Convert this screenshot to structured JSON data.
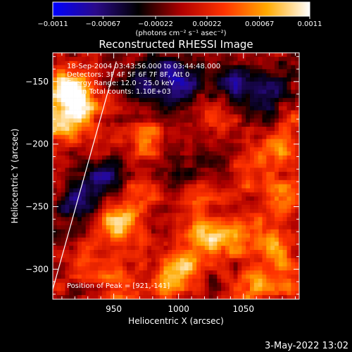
{
  "chart_data": {
    "type": "heatmap",
    "title": "Reconstructed RHESSI Image",
    "xlabel": "Heliocentric X (arcsec)",
    "ylabel": "Heliocentric Y (arcsec)",
    "xlim": [
      903,
      1093
    ],
    "ylim": [
      -324,
      -127
    ],
    "x_ticks": [
      950,
      1000,
      1050
    ],
    "x_tick_labels": [
      "950",
      "1000",
      "1050"
    ],
    "y_ticks": [
      -150,
      -200,
      -250,
      -300
    ],
    "y_tick_labels": [
      "−150",
      "−200",
      "−250",
      "−300"
    ],
    "colorbar": {
      "range": [
        -0.0011,
        0.0011
      ],
      "ticks": [
        -0.0011,
        -0.00067,
        -0.00022,
        0.00022,
        0.00067,
        0.0011
      ],
      "tick_labels": [
        "−0.0011",
        "−0.00067",
        "−0.00022",
        "0.00022",
        "0.00067",
        "0.0011"
      ],
      "unit_label": "(photons cm⁻² s⁻¹ asec⁻²)",
      "colormap": [
        "#0000ff",
        "#2a0a8a",
        "#000000",
        "#b00000",
        "#ff3300",
        "#ffaa00",
        "#ffffff"
      ]
    },
    "annotations": [
      "18-Sep-2004 03:43:56.000 to 03:44:48.000",
      "Detectors: 3F 4F 5F 6F 7F 8F, Att 0",
      "Energy Range: 12.0 - 25.0 keV",
      "Clean    Total counts: 1.10E+03",
      "Position of Peak = [921,-141]"
    ],
    "peak": {
      "x": 921,
      "y": -141
    },
    "limb_line": {
      "x": [
        903,
        952
      ],
      "y": [
        -316,
        -134
      ]
    },
    "hotspots": [
      {
        "x": 915,
        "y": -155,
        "value": 0.0011
      },
      {
        "x": 925,
        "y": -170,
        "value": 0.0009
      },
      {
        "x": 910,
        "y": -185,
        "value": 0.0008
      },
      {
        "x": 1020,
        "y": -275,
        "value": 0.0009
      },
      {
        "x": 1045,
        "y": -275,
        "value": 0.0007
      },
      {
        "x": 1003,
        "y": -300,
        "value": 0.0007
      },
      {
        "x": 955,
        "y": -265,
        "value": 0.0007
      },
      {
        "x": 945,
        "y": -255,
        "value": 0.0006
      },
      {
        "x": 1075,
        "y": -280,
        "value": 0.0007
      },
      {
        "x": 1080,
        "y": -245,
        "value": 0.0006
      },
      {
        "x": 1072,
        "y": -205,
        "value": 0.0006
      },
      {
        "x": 1030,
        "y": -180,
        "value": 0.0005
      },
      {
        "x": 975,
        "y": -195,
        "value": 0.0005
      },
      {
        "x": 970,
        "y": -235,
        "value": 0.0004
      },
      {
        "x": 1050,
        "y": -225,
        "value": 0.0004
      },
      {
        "x": 990,
        "y": -310,
        "value": 0.0005
      },
      {
        "x": 1060,
        "y": -315,
        "value": 0.0006
      },
      {
        "x": 1085,
        "y": -310,
        "value": 0.0005
      },
      {
        "x": 935,
        "y": -295,
        "value": 0.0004
      },
      {
        "x": 960,
        "y": -315,
        "value": 0.0005
      },
      {
        "x": 1090,
        "y": -180,
        "value": 0.0004
      },
      {
        "x": 1010,
        "y": -245,
        "value": 0.0004
      }
    ],
    "coldspots": [
      {
        "x": 1000,
        "y": -150,
        "value": -0.0006
      },
      {
        "x": 1045,
        "y": -150,
        "value": -0.0005
      },
      {
        "x": 975,
        "y": -155,
        "value": -0.0005
      },
      {
        "x": 1070,
        "y": -160,
        "value": -0.0005
      },
      {
        "x": 935,
        "y": -245,
        "value": -0.0006
      },
      {
        "x": 945,
        "y": -225,
        "value": -0.0004
      },
      {
        "x": 918,
        "y": -255,
        "value": -0.0003
      },
      {
        "x": 1005,
        "y": -220,
        "value": -0.0003
      },
      {
        "x": 1040,
        "y": -205,
        "value": -0.0003
      }
    ]
  },
  "footer": {
    "timestamp": "3-May-2022 13:02"
  }
}
